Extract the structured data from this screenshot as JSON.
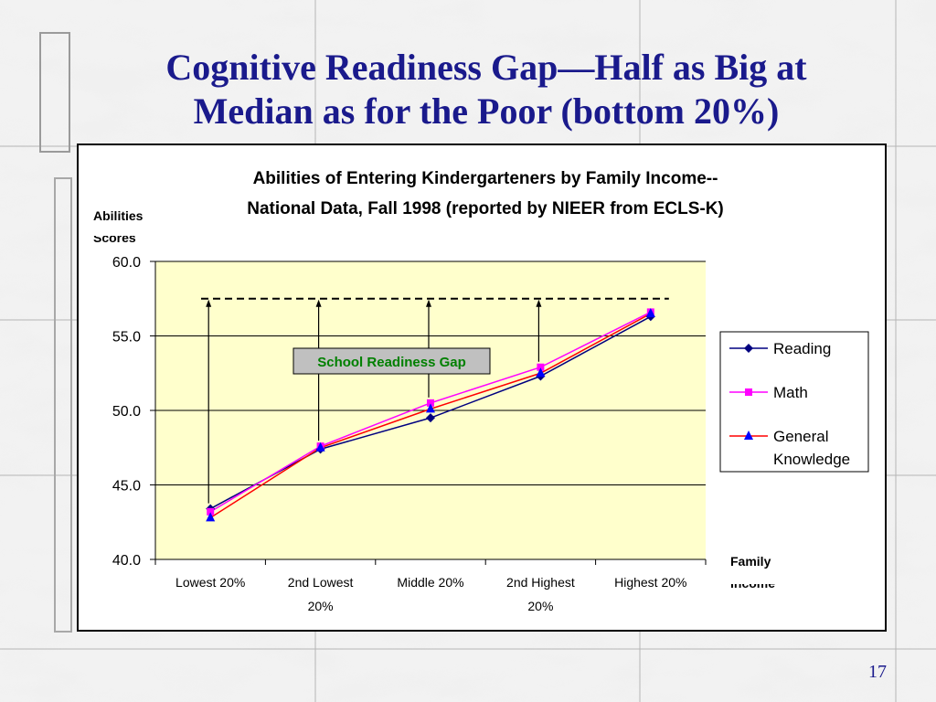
{
  "slide": {
    "title_line1": "Cognitive Readiness Gap—Half as Big at",
    "title_line2": "Median as for the Poor (bottom 20%)",
    "page_number": "17"
  },
  "chart_data": {
    "type": "line",
    "title_line1": "Abilities of Entering Kindergarteners by Family Income--",
    "title_line2": "National Data, Fall 1998 (reported by NIEER from ECLS-K)",
    "ylabel_line1": "Abilities",
    "ylabel_line2": "Scores",
    "xlabel_line1": "Family",
    "xlabel_line2": "Income",
    "categories": [
      [
        "Lowest 20%"
      ],
      [
        "2nd Lowest",
        "20%"
      ],
      [
        "Middle 20%"
      ],
      [
        "2nd Highest",
        "20%"
      ],
      [
        "Highest 20%"
      ]
    ],
    "ylim": [
      40,
      60
    ],
    "yticks": [
      "40.0",
      "45.0",
      "50.0",
      "55.0",
      "60.0"
    ],
    "grid": true,
    "legend_position": "right",
    "plot_background": "#ffffcc",
    "series": [
      {
        "name": "Reading",
        "color": "#000080",
        "marker": "diamond",
        "marker_color": "#000080",
        "values": [
          43.4,
          47.4,
          49.5,
          52.3,
          56.3
        ]
      },
      {
        "name": "Math",
        "color": "#ff00ff",
        "marker": "square",
        "marker_color": "#ff00ff",
        "values": [
          43.2,
          47.6,
          50.5,
          52.9,
          56.6
        ]
      },
      {
        "name": "General Knowledge",
        "legend_lines": [
          "General",
          "Knowledge"
        ],
        "color": "#ff0000",
        "marker": "triangle",
        "marker_color": "#0000ff",
        "values": [
          42.8,
          47.5,
          50.1,
          52.5,
          56.5
        ]
      }
    ],
    "annotation": {
      "label": "School Readiness Gap",
      "reference_level": 57.5,
      "label_color": "#008000",
      "box_color": "#c0c0c0"
    }
  }
}
